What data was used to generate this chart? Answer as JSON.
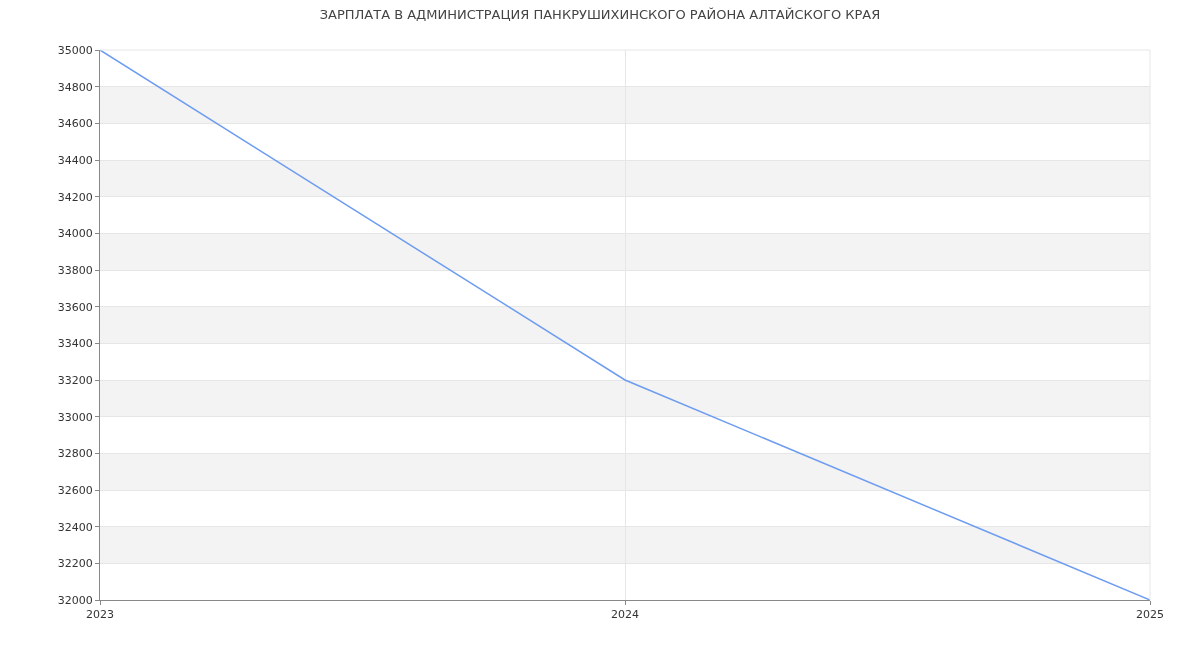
{
  "chart_data": {
    "type": "line",
    "title": "ЗАРПЛАТА В АДМИНИСТРАЦИЯ ПАНКРУШИХИНСКОГО РАЙОНА АЛТАЙСКОГО КРАЯ",
    "x": [
      2023,
      2024,
      2025
    ],
    "series": [
      {
        "color": "#6d9cf0",
        "values": [
          35000,
          33200,
          32000
        ]
      }
    ],
    "xlim": [
      2023,
      2025
    ],
    "xticks": [
      2023,
      2024,
      2025
    ],
    "ylim": [
      32000,
      35000
    ],
    "yticks": [
      32000,
      32200,
      32400,
      32600,
      32800,
      33000,
      33200,
      33400,
      33600,
      33800,
      34000,
      34200,
      34400,
      34600,
      34800,
      35000
    ],
    "bands": [
      {
        "axis": "y",
        "from": 32200,
        "to": 32400,
        "color": "#f3f3f3"
      },
      {
        "axis": "y",
        "from": 32600,
        "to": 32800,
        "color": "#f3f3f3"
      },
      {
        "axis": "y",
        "from": 33000,
        "to": 33200,
        "color": "#f3f3f3"
      },
      {
        "axis": "y",
        "from": 33400,
        "to": 33600,
        "color": "#f3f3f3"
      },
      {
        "axis": "y",
        "from": 33800,
        "to": 34000,
        "color": "#f3f3f3"
      },
      {
        "axis": "y",
        "from": 34200,
        "to": 34400,
        "color": "#f3f3f3"
      },
      {
        "axis": "y",
        "from": 34600,
        "to": 34800,
        "color": "#f3f3f3"
      }
    ],
    "grid": true,
    "marker": "none",
    "line_style": "solid",
    "legend": false
  }
}
